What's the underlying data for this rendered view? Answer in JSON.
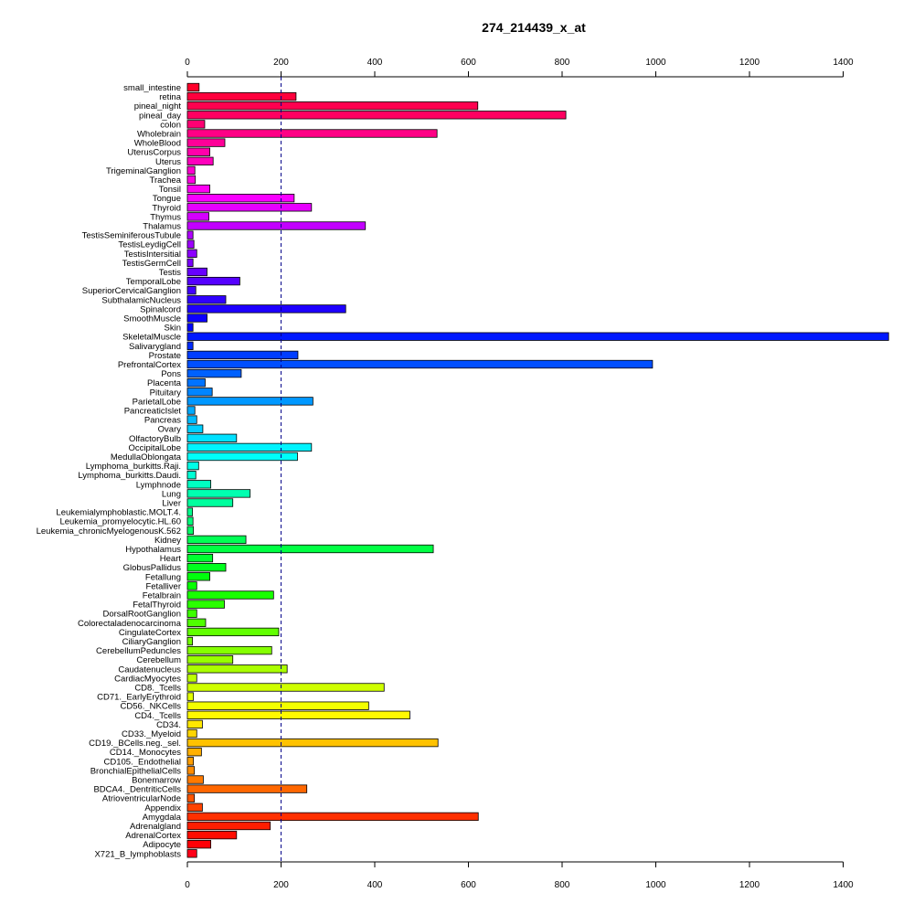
{
  "chart_data": {
    "type": "bar",
    "orientation": "horizontal",
    "title": "274_214439_x_at",
    "xlabel": "",
    "ylabel": "",
    "xlim": [
      0,
      1400
    ],
    "xticks": [
      0,
      200,
      400,
      600,
      800,
      1000,
      1200,
      1400
    ],
    "xtick_labels": [
      "0",
      "200",
      "400",
      "600",
      "800",
      "1000",
      "1200",
      "1400"
    ],
    "axes_top_and_bottom": true,
    "reference_line": {
      "value": 200,
      "style": "dashed",
      "color": "#00008B"
    },
    "grid": false,
    "legend": "none",
    "categories": [
      "small_intestine",
      "retina",
      "pineal_night",
      "pineal_day",
      "colon",
      "Wholebrain",
      "WholeBlood",
      "UterusCorpus",
      "Uterus",
      "TrigeminalGanglion",
      "Trachea",
      "Tonsil",
      "Tongue",
      "Thyroid",
      "Thymus",
      "Thalamus",
      "TestisSeminiferousTubule",
      "TestisLeydigCell",
      "TestisIntersitial",
      "TestisGermCell",
      "Testis",
      "TemporalLobe",
      "SuperiorCervicalGanglion",
      "SubthalamicNucleus",
      "Spinalcord",
      "SmoothMuscle",
      "Skin",
      "SkeletalMuscle",
      "Salivarygland",
      "Prostate",
      "PrefrontalCortex",
      "Pons",
      "Placenta",
      "Pituitary",
      "ParietalLobe",
      "PancreaticIslet",
      "Pancreas",
      "Ovary",
      "OlfactoryBulb",
      "OccipitalLobe",
      "MedullaOblongata",
      "Lymphoma_burkitts.Raji.",
      "Lymphoma_burkitts.Daudi.",
      "Lymphnode",
      "Lung",
      "Liver",
      "Leukemialymphoblastic.MOLT.4.",
      "Leukemia_promyelocytic.HL.60",
      "Leukemia_chronicMyelogenousK.562",
      "Kidney",
      "Hypothalamus",
      "Heart",
      "GlobusPallidus",
      "Fetallung",
      "Fetalliver",
      "Fetalbrain",
      "FetalThyroid",
      "DorsalRootGanglion",
      "Colorectaladenocarcinoma",
      "CingulateCortex",
      "CiliaryGanglion",
      "CerebellumPeduncles",
      "Cerebellum",
      "Caudatenucleus",
      "CardiacMyocytes",
      "CD8._Tcells",
      "CD71._EarlyErythroid",
      "CD56._NKCells",
      "CD4._Tcells",
      "CD34.",
      "CD33._Myeloid",
      "CD19._BCells.neg._sel.",
      "CD14._Monocytes",
      "CD105._Endothelial",
      "BronchialEpithelialCells",
      "Bonemarrow",
      "BDCA4._DentriticCells",
      "AtrioventricularNode",
      "Appendix",
      "Amygdala",
      "Adrenalgland",
      "AdrenalCortex",
      "Adipocyte",
      "X721_B_lymphoblasts"
    ],
    "values": [
      25,
      232,
      620,
      808,
      37,
      533,
      80,
      48,
      55,
      16,
      17,
      48,
      228,
      265,
      46,
      380,
      12,
      14,
      20,
      12,
      42,
      112,
      18,
      82,
      338,
      42,
      12,
      1497,
      12,
      236,
      993,
      115,
      38,
      53,
      268,
      16,
      20,
      33,
      105,
      265,
      235,
      24,
      18,
      50,
      134,
      97,
      11,
      12,
      13,
      125,
      525,
      54,
      82,
      48,
      20,
      184,
      79,
      20,
      39,
      195,
      11,
      180,
      97,
      213,
      20,
      420,
      13,
      387,
      475,
      32,
      20,
      535,
      30,
      13,
      15,
      34,
      255,
      15,
      32,
      621,
      177,
      105,
      50,
      20
    ]
  }
}
